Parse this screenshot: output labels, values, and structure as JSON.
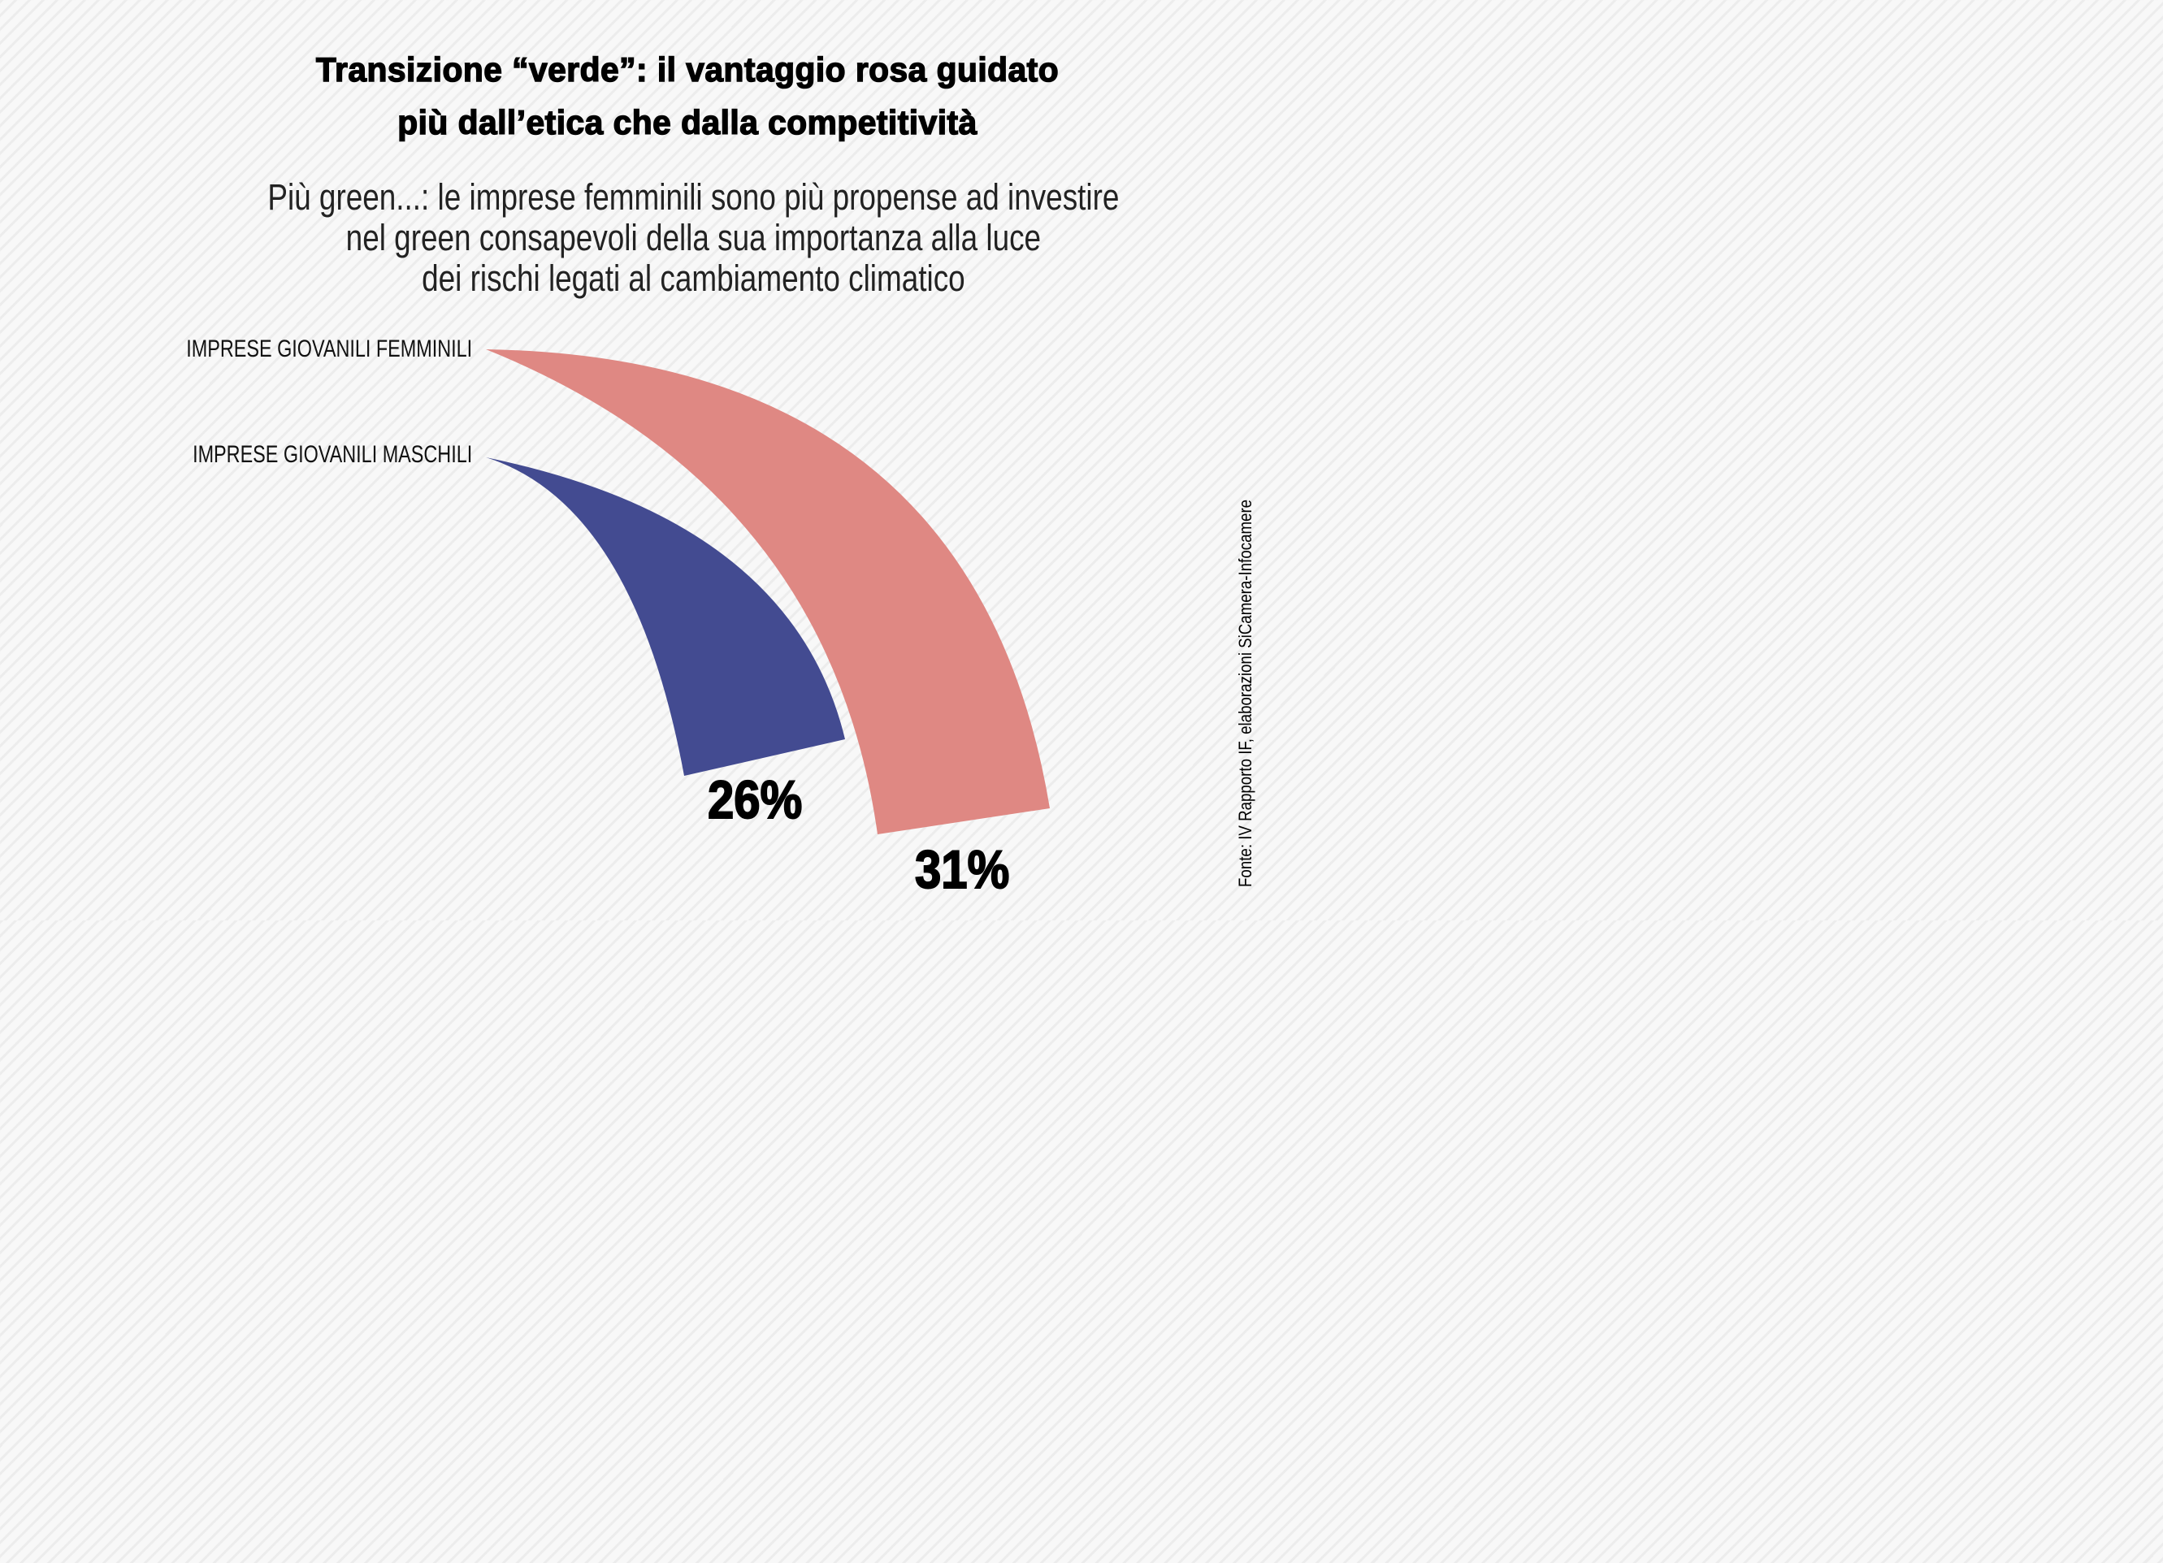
{
  "title": {
    "line1": "Transizione “verde”: il vantaggio rosa guidato",
    "line2": "più dall’etica che dalla competitività"
  },
  "subtitle": {
    "line1": "Più green...: le imprese femminili sono più propense ad investire",
    "line2": "nel green consapevoli della sua importanza alla luce",
    "line3": "dei rischi legati al cambiamento climatico"
  },
  "source": "Fonte: IV Rapporto IF, elaborazioni SiCamera-Infocamere",
  "colors": {
    "female": "#df8883",
    "male": "#434b91"
  },
  "chart_data": {
    "type": "bar",
    "title": "Transizione “verde”: il vantaggio rosa guidato più dall’etica che dalla competitività",
    "unit": "%",
    "categories": [
      "IMPRESE GIOVANILI FEMMINILI",
      "IMPRESE GIOVANILI MASCHILI"
    ],
    "values": [
      31,
      26
    ],
    "value_labels": [
      "31%",
      "26%"
    ]
  }
}
